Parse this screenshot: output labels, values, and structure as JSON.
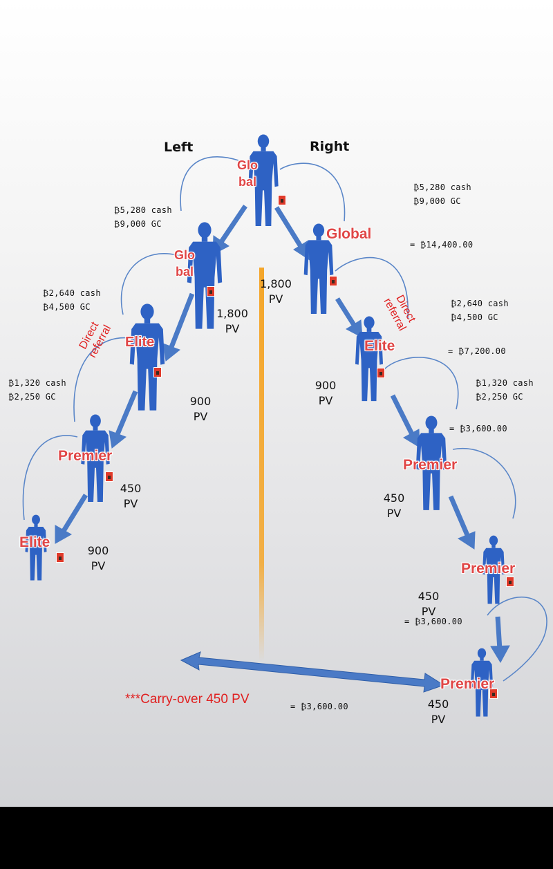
{
  "headers": {
    "left": "Left",
    "right": "Right"
  },
  "ranks": {
    "top_global": "Glo\nbal",
    "left_global": "Glo\nbal",
    "right_global": "Global",
    "left_elite": "Elite",
    "right_elite": "Elite",
    "left_premier": "Premier",
    "left_bottom_elite": "Elite",
    "right_premier_1": "Premier",
    "right_premier_2": "Premier",
    "right_premier_3": "Premier"
  },
  "referrals": {
    "left": "Direct\nreferral",
    "right": "Direct\nreferral"
  },
  "pv": {
    "center": "1,800\nPV",
    "left_global": "1,800\nPV",
    "left_elite": "900\nPV",
    "left_premier": "450\nPV",
    "left_bottom_elite": "900\nPV",
    "right_elite": "900\nPV",
    "right_premier_1": "450\nPV",
    "right_premier_2": "450\nPV",
    "right_premier_3": "450\nPV"
  },
  "payouts": {
    "left_global": "₿5,280 cash\n₿9,000 GC",
    "left_elite": "₿2,640 cash\n₿4,500 GC",
    "left_premier": "₿1,320 cash\n₿2,250 GC",
    "right_global": "₿5,280 cash\n₿9,000 GC",
    "right_elite": "₿2,640 cash\n₿4,500 GC",
    "right_premier": "₿1,320 cash\n₿2,250 GC"
  },
  "totals": {
    "right_global": "= ₿14,400.00",
    "right_elite": "= ₿7,200.00",
    "right_premier_1": "= ₿3,600.00",
    "right_premier_2": "= ₿3,600.00",
    "carry": "= ₿3,600.00"
  },
  "carry_over": "***Carry-over 450 PV",
  "colors": {
    "person": "#2e62c4",
    "arrow": "#4a7ac6",
    "curve": "#5a86c8",
    "rank_text": "#e04646",
    "referral_text": "#e02020",
    "divider": "#f4a62a",
    "badge": "#e03a2a"
  },
  "icons": [
    "person-icon",
    "badge-icon",
    "arrow-icon",
    "curve-arrow-icon",
    "double-arrow-icon"
  ]
}
